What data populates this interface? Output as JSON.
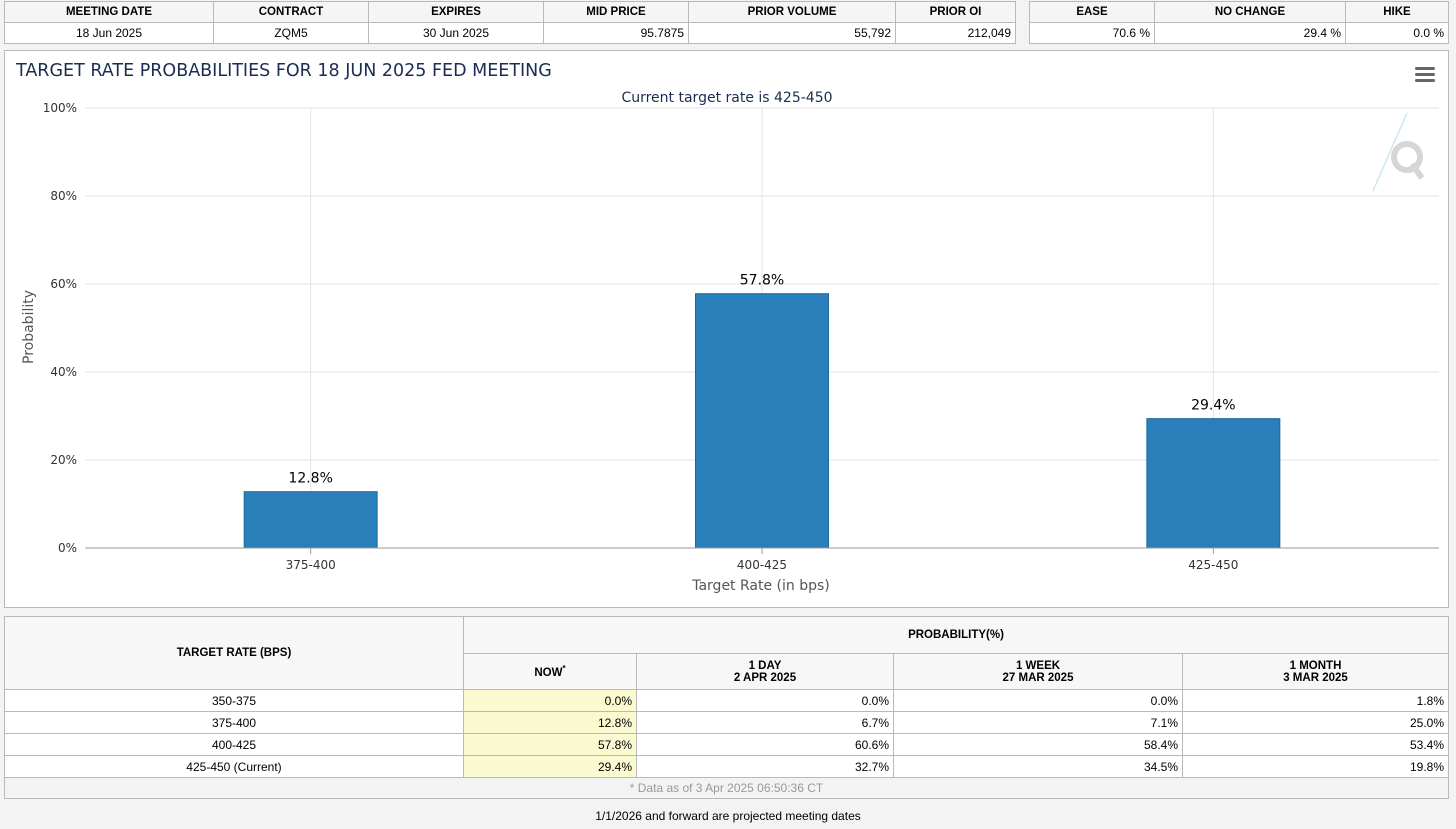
{
  "meeting_table": {
    "headers": [
      "MEETING DATE",
      "CONTRACT",
      "EXPIRES",
      "MID PRICE",
      "PRIOR VOLUME",
      "PRIOR OI"
    ],
    "row": [
      "18 Jun 2025",
      "ZQM5",
      "30 Jun 2025",
      "95.7875",
      "55,792",
      "212,049"
    ]
  },
  "summary_table": {
    "headers": [
      "EASE",
      "NO CHANGE",
      "HIKE"
    ],
    "row": [
      "70.6 %",
      "29.4 %",
      "0.0 %"
    ]
  },
  "chart": {
    "menu_icon": "hamburger-menu-icon",
    "watermark_icon": "q-logo-icon"
  },
  "chart_data": {
    "type": "bar",
    "title": "TARGET RATE PROBABILITIES FOR 18 JUN 2025 FED MEETING",
    "subtitle": "Current target rate is 425-450",
    "categories": [
      "375-400",
      "400-425",
      "425-450"
    ],
    "values": [
      12.8,
      57.8,
      29.4
    ],
    "data_labels": [
      "12.8%",
      "57.8%",
      "29.4%"
    ],
    "xlabel": "Target Rate (in bps)",
    "ylabel": "Probability",
    "ylim": [
      0,
      100
    ],
    "yticks": [
      "0%",
      "20%",
      "40%",
      "60%",
      "80%",
      "100%"
    ],
    "grid": true,
    "bar_color": "#2a7fba"
  },
  "probability_table": {
    "target_rate_header": "TARGET RATE (BPS)",
    "probability_header": "PROBABILITY(%)",
    "columns": [
      {
        "line1": "NOW",
        "marker": "*",
        "line2": ""
      },
      {
        "line1": "1 DAY",
        "line2": "2 APR 2025"
      },
      {
        "line1": "1 WEEK",
        "line2": "27 MAR 2025"
      },
      {
        "line1": "1 MONTH",
        "line2": "3 MAR 2025"
      }
    ],
    "rows": [
      {
        "rate": "350-375",
        "values": [
          "0.0%",
          "0.0%",
          "0.0%",
          "1.8%"
        ]
      },
      {
        "rate": "375-400",
        "values": [
          "12.8%",
          "6.7%",
          "7.1%",
          "25.0%"
        ]
      },
      {
        "rate": "400-425",
        "values": [
          "57.8%",
          "60.6%",
          "58.4%",
          "53.4%"
        ]
      },
      {
        "rate": "425-450 (Current)",
        "values": [
          "29.4%",
          "32.7%",
          "34.5%",
          "19.8%"
        ]
      }
    ],
    "footnote": "* Data as of 3 Apr 2025 06:50:36 CT"
  },
  "footer_note": "1/1/2026 and forward are projected meeting dates",
  "colors": {
    "title": "#1c2c52",
    "bar": "#2a7fba",
    "now_column_highlight": "#fbf9d0"
  }
}
